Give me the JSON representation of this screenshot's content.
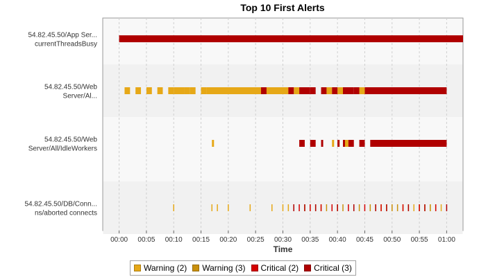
{
  "chart_data": {
    "type": "timeline",
    "title": "Top 10 First Alerts",
    "xlabel": "Time",
    "ylabel": "",
    "x_ticks": [
      "00:00",
      "00:05",
      "00:10",
      "00:15",
      "00:20",
      "00:25",
      "00:30",
      "00:35",
      "00:40",
      "00:45",
      "00:50",
      "00:55",
      "01:00"
    ],
    "xlim": [
      "-0:03",
      "01:03"
    ],
    "grid": true,
    "legend_position": "bottom",
    "legend": [
      {
        "label": "Warning (2)",
        "color": "#e6a817"
      },
      {
        "label": "Warning (3)",
        "color": "#c9900c"
      },
      {
        "label": "Critical (2)",
        "color": "#d50000"
      },
      {
        "label": "Critical (3)",
        "color": "#b00000"
      }
    ],
    "categories": [
      {
        "label_lines": [
          "54.82.45.50/App Ser...",
          "currentThreadsBusy"
        ]
      },
      {
        "label_lines": [
          "54.82.45.50/Web",
          "Server/Al..."
        ]
      },
      {
        "label_lines": [
          "54.82.45.50/Web",
          "Server/All/IdleWorkers"
        ]
      },
      {
        "label_lines": [
          "54.82.45.50/DB/Conn...",
          "ns/aborted connects"
        ]
      }
    ],
    "series": [
      {
        "category": 0,
        "status": "Critical (3)",
        "segments": [
          [
            "00:00",
            "01:03"
          ]
        ]
      },
      {
        "category": 1,
        "status": "Warning (2)",
        "segments": [
          [
            "00:01",
            "00:02"
          ],
          [
            "00:03",
            "00:04"
          ],
          [
            "00:05",
            "00:06"
          ],
          [
            "00:07",
            "00:08"
          ],
          [
            "00:09",
            "00:10"
          ],
          [
            "00:10",
            "00:12"
          ],
          [
            "00:12",
            "00:13"
          ],
          [
            "00:13",
            "00:14"
          ],
          [
            "00:15",
            "00:16"
          ],
          [
            "00:16",
            "00:26"
          ],
          [
            "00:26",
            "00:30"
          ],
          [
            "00:30",
            "00:31"
          ],
          [
            "00:32",
            "00:33"
          ],
          [
            "00:38",
            "00:39"
          ],
          [
            "00:40",
            "00:41"
          ],
          [
            "00:44",
            "00:45"
          ]
        ]
      },
      {
        "category": 1,
        "status": "Critical (3)",
        "segments": [
          [
            "00:26",
            "00:27"
          ],
          [
            "00:31",
            "00:32"
          ],
          [
            "00:33",
            "00:35"
          ],
          [
            "00:35",
            "00:36"
          ],
          [
            "00:37",
            "00:38"
          ],
          [
            "00:39",
            "00:40"
          ],
          [
            "00:41",
            "00:43"
          ],
          [
            "00:43",
            "00:44"
          ],
          [
            "00:45",
            "01:00"
          ]
        ]
      },
      {
        "category": 2,
        "status": "Warning (2)",
        "segments": [
          [
            "00:17",
            "00:17"
          ],
          [
            "00:39",
            "00:39"
          ],
          [
            "00:40",
            "00:40"
          ],
          [
            "00:41",
            "00:42"
          ]
        ]
      },
      {
        "category": 2,
        "status": "Critical (3)",
        "segments": [
          [
            "00:33",
            "00:34"
          ],
          [
            "00:35",
            "00:36"
          ],
          [
            "00:37",
            "00:37"
          ],
          [
            "00:40",
            "00:40"
          ],
          [
            "00:41",
            "00:41"
          ],
          [
            "00:42",
            "00:43"
          ],
          [
            "00:44",
            "00:45"
          ],
          [
            "00:46",
            "01:00"
          ]
        ]
      },
      {
        "category": 3,
        "status": "Warning (2)",
        "events": [
          "00:10",
          "00:17",
          "00:18",
          "00:20",
          "00:24",
          "00:28",
          "00:30",
          "00:31",
          "00:35",
          "00:37",
          "00:39",
          "00:40",
          "00:43",
          "00:47",
          "00:48",
          "00:49",
          "00:50",
          "00:52",
          "00:53",
          "00:54",
          "00:56",
          "00:57",
          "00:58",
          "00:59"
        ]
      },
      {
        "category": 3,
        "status": "Warning (3)",
        "events": [
          "00:32",
          "00:34",
          "00:36",
          "00:38",
          "00:41",
          "00:44",
          "00:46",
          "00:50",
          "00:51",
          "00:55",
          "00:57"
        ]
      },
      {
        "category": 3,
        "status": "Critical (2)",
        "events": [
          "00:33",
          "00:35",
          "00:37",
          "00:39",
          "00:42",
          "00:45",
          "00:48",
          "00:52",
          "00:55",
          "00:58"
        ]
      },
      {
        "category": 3,
        "status": "Critical (3)",
        "events": [
          "00:32",
          "00:34",
          "00:36",
          "00:40",
          "00:43",
          "00:47",
          "00:49",
          "00:53",
          "00:56",
          "01:00"
        ]
      }
    ]
  }
}
